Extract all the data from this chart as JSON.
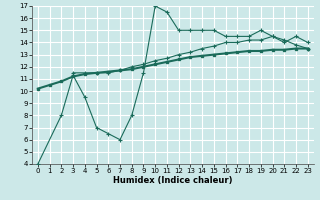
{
  "title": "",
  "xlabel": "Humidex (Indice chaleur)",
  "bg_color": "#cce8e8",
  "grid_color": "#ffffff",
  "line_color": "#1a6b5a",
  "xlim": [
    -0.5,
    23.5
  ],
  "ylim": [
    4,
    17
  ],
  "xticks": [
    0,
    1,
    2,
    3,
    4,
    5,
    6,
    7,
    8,
    9,
    10,
    11,
    12,
    13,
    14,
    15,
    16,
    17,
    18,
    19,
    20,
    21,
    22,
    23
  ],
  "yticks": [
    4,
    5,
    6,
    7,
    8,
    9,
    10,
    11,
    12,
    13,
    14,
    15,
    16,
    17
  ],
  "curve1_x": [
    0,
    2,
    3,
    4,
    5,
    6,
    7,
    8,
    9,
    10,
    11,
    12,
    13,
    14,
    15,
    16,
    17,
    18,
    19,
    20,
    21,
    22,
    23
  ],
  "curve1_y": [
    4,
    8,
    11.3,
    9.5,
    7,
    6.5,
    6,
    8,
    11.5,
    17,
    16.5,
    15,
    15,
    15,
    15,
    14.5,
    14.5,
    14.5,
    15,
    14.5,
    14,
    14.5,
    14
  ],
  "curve2_x": [
    3,
    4,
    5,
    6,
    7,
    8,
    9,
    10,
    11,
    12,
    13,
    14,
    15,
    16,
    17,
    18,
    19,
    20,
    21,
    22,
    23
  ],
  "curve2_y": [
    11.5,
    11.5,
    11.5,
    11.5,
    11.7,
    12.0,
    12.2,
    12.5,
    12.7,
    13.0,
    13.2,
    13.5,
    13.7,
    14.0,
    14.0,
    14.2,
    14.2,
    14.5,
    14.2,
    13.8,
    13.5
  ],
  "curve3_x": [
    0,
    1,
    2,
    3,
    4,
    5,
    6,
    7,
    8,
    9,
    10,
    11,
    12,
    13,
    14,
    15,
    16,
    17,
    18,
    19,
    20,
    21,
    22,
    23
  ],
  "curve3_y": [
    10.2,
    10.5,
    10.8,
    11.2,
    11.4,
    11.5,
    11.6,
    11.7,
    11.8,
    12.0,
    12.2,
    12.4,
    12.6,
    12.8,
    12.9,
    13.0,
    13.1,
    13.2,
    13.3,
    13.3,
    13.4,
    13.4,
    13.5,
    13.5
  ],
  "xlabel_fontsize": 6,
  "tick_fontsize": 5
}
